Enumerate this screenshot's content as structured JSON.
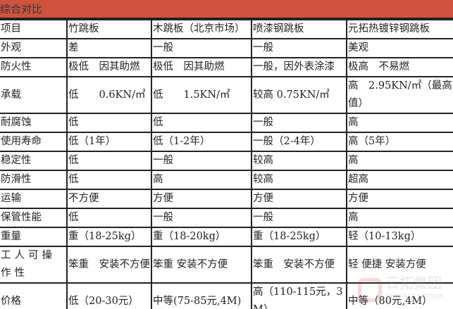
{
  "title": "综合对比",
  "header_color": "#cf5440",
  "columns": [
    "项目",
    "竹跳板",
    "木跳板（北京市场）",
    "喷漆钢跳板",
    "元拓热镀锌钢跳板"
  ],
  "rows": [
    [
      "外观",
      "差",
      "一般",
      "一般",
      "美观"
    ],
    [
      "防火性",
      "极低　因其助燃",
      "极低　因其助燃",
      "一般，因外表涂漆",
      "极高　不易燃"
    ],
    [
      "承载",
      "低　　0.6KN/㎡",
      "低　　1.5KN/㎡",
      "较高 0.75KN/㎡",
      "高　2.95KN/㎡（最高值）"
    ],
    [
      "耐腐蚀",
      "低",
      "低",
      "一般",
      "高"
    ],
    [
      "使用寿命",
      "低（1年）",
      "低（1-2年）",
      "一般（2-4年）",
      "高（5年）"
    ],
    [
      "稳定性",
      "低",
      "一般",
      "较高",
      "高"
    ],
    [
      "防滑性",
      "低",
      "高",
      "较高",
      "超高"
    ],
    [
      "运输",
      "不方便",
      "方便",
      "方便",
      "方便"
    ],
    [
      "保管性能",
      "低",
      "一般",
      "一般",
      "高"
    ],
    [
      "重量",
      "重（18-25kg）",
      "重（18-20kg）",
      "重（18-25kg）",
      "轻（10-13kg）"
    ],
    [
      "工人可操作性",
      "笨重　安装不方便",
      "笨重 安装不方便",
      "笨重　安装不方便",
      "轻 便捷 安装方便"
    ],
    [
      "价格",
      "低（20-30元）",
      "中等(75-85元,4M)",
      "高（110-115元，3M）",
      "中等（80元,4M）"
    ]
  ],
  "watermark": {
    "text": "云拓集团",
    "sub": "YUNTUO GROUP"
  }
}
